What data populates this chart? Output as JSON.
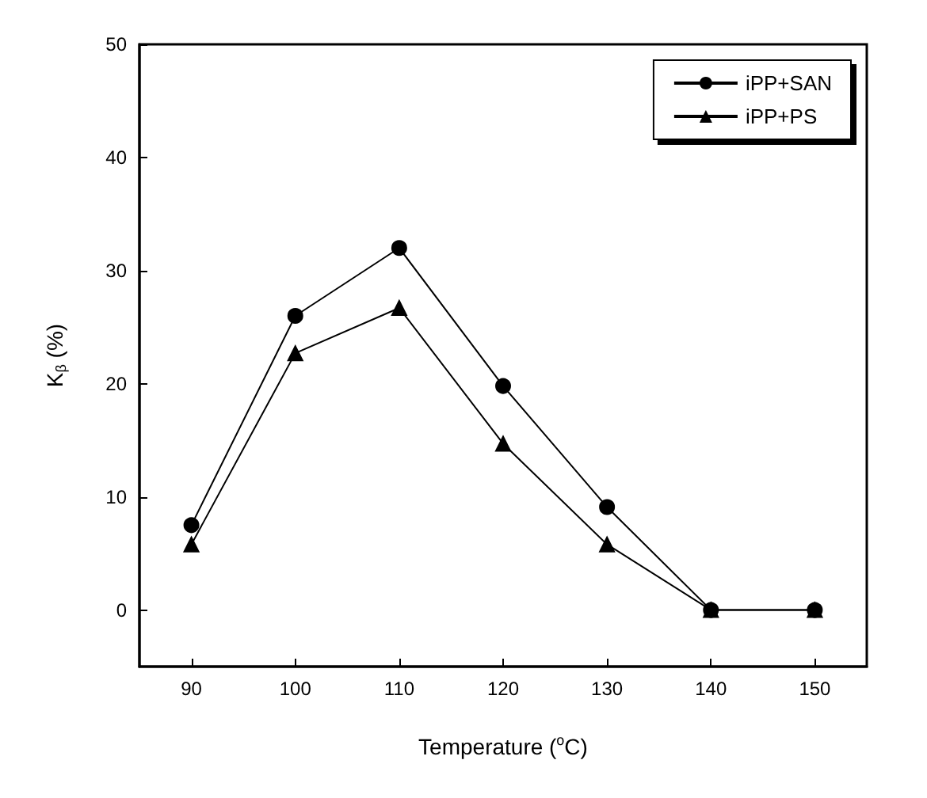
{
  "chart_data": {
    "type": "line",
    "xlabel": "Temperature ($^{o}$C)",
    "ylabel": "K$_{β}$ (%)",
    "x": [
      90,
      100,
      110,
      120,
      130,
      140,
      150
    ],
    "series": [
      {
        "name": "iPP+SAN",
        "color": "#000000",
        "marker": "circle",
        "values": [
          7.5,
          26,
          32,
          19.8,
          9.1,
          0,
          0
        ]
      },
      {
        "name": "iPP+PS",
        "color": "#000000",
        "marker": "triangle",
        "values": [
          5.8,
          22.7,
          26.7,
          14.7,
          5.8,
          0,
          0
        ]
      }
    ],
    "xlim": [
      85,
      155
    ],
    "xticks": [
      90,
      100,
      110,
      120,
      130,
      140,
      150
    ],
    "ylim": [
      -5,
      50
    ],
    "yticks": [
      0,
      10,
      20,
      30,
      40,
      50
    ],
    "grid": false,
    "legend": "top right",
    "line_style": "solid"
  }
}
